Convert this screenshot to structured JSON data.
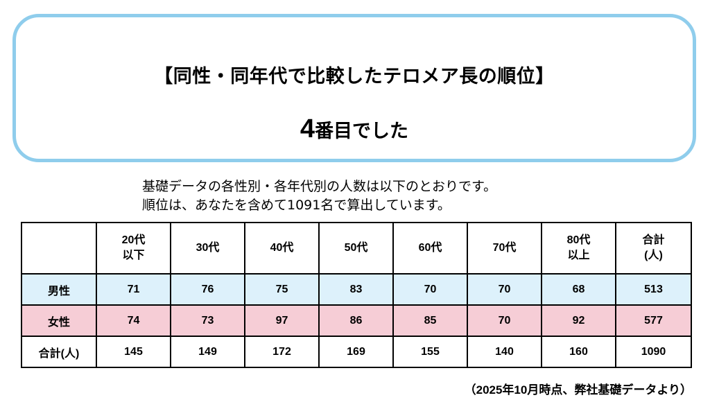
{
  "result_box": {
    "title": "【同性・同年代で比較したテロメア長の順位】",
    "rank_number": "4",
    "rank_text": "番目でした"
  },
  "intro": {
    "line1": "基礎データの各性別・各年代別の人数は以下のとおりです。",
    "line2": "順位は、あなたを含めて1091名で算出しています。"
  },
  "table": {
    "columns": [
      "",
      "20代\n以下",
      "30代",
      "40代",
      "50代",
      "60代",
      "70代",
      "80代\n以上",
      "合計\n(人)"
    ],
    "rows": [
      {
        "label": "男性",
        "values": [
          "71",
          "76",
          "75",
          "83",
          "70",
          "70",
          "68",
          "513"
        ]
      },
      {
        "label": "女性",
        "values": [
          "74",
          "73",
          "97",
          "86",
          "85",
          "70",
          "92",
          "577"
        ]
      },
      {
        "label": "合計(人)",
        "values": [
          "145",
          "149",
          "172",
          "169",
          "155",
          "140",
          "160",
          "1090"
        ]
      }
    ]
  },
  "footnote": "（2025年10月時点、弊社基礎データより）",
  "colors": {
    "box_border": "#8fcdec",
    "male_row_bg": "#ddf1fb",
    "female_row_bg": "#f6cdd6"
  }
}
